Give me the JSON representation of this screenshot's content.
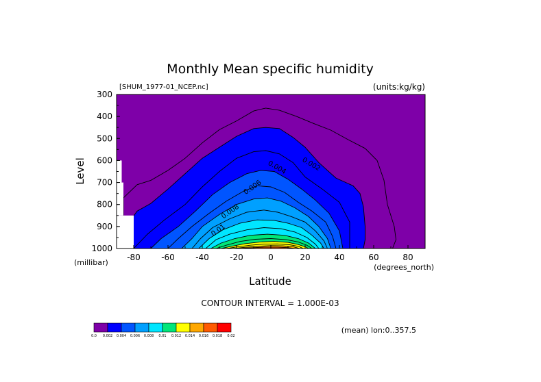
{
  "chart_data": {
    "type": "filled-contour",
    "title": "Monthly Mean specific humidity",
    "file_label": "[SHUM_1977-01_NCEP.nc]",
    "units_label": "(units:kg/kg)",
    "xlabel": "Latitude",
    "xunits": "(degrees_north)",
    "ylabel": "Level",
    "yunits": "(millibar)",
    "xlim": [
      -90,
      90
    ],
    "ylim": [
      300,
      1000
    ],
    "y_inverted": true,
    "x_ticks": [
      "-80",
      "-60",
      "-40",
      "-20",
      "0",
      "20",
      "40",
      "60",
      "80"
    ],
    "x_tick_values": [
      -80,
      -60,
      -40,
      -20,
      0,
      20,
      40,
      60,
      80
    ],
    "y_ticks": [
      "300",
      "400",
      "500",
      "600",
      "700",
      "800",
      "900",
      "1000"
    ],
    "y_tick_values": [
      300,
      400,
      500,
      600,
      700,
      800,
      900,
      1000
    ],
    "contour_interval_text": "CONTOUR INTERVAL = 1.000E-03",
    "region_text": "(mean) lon:0..357.5",
    "contour_labels": [
      {
        "text": "0.002",
        "lat": 23,
        "lev": 625
      },
      {
        "text": "0.004",
        "lat": 3,
        "lev": 640
      },
      {
        "text": "0.006",
        "lat": -10,
        "lev": 730
      },
      {
        "text": "0.008",
        "lat": -23,
        "lev": 840
      },
      {
        "text": "0.01",
        "lat": -30,
        "lev": 925
      }
    ],
    "colorbar": {
      "levels": [
        "0.0",
        "0.002",
        "0.004",
        "0.006",
        "0.008",
        "0.01",
        "0.012",
        "0.014",
        "0.016",
        "0.018",
        "0.02"
      ],
      "colors": [
        "#7e00a8",
        "#0000ff",
        "#0055ff",
        "#00a0ff",
        "#00e6ff",
        "#00e67a",
        "#ffff00",
        "#ffa800",
        "#ff5a00",
        "#ff0000"
      ]
    },
    "contours": [
      {
        "level": 0.001,
        "points": [
          [
            -86,
            1000
          ],
          [
            -86,
            770
          ],
          [
            -78,
            710
          ],
          [
            -70,
            690
          ],
          [
            -60,
            645
          ],
          [
            -50,
            590
          ],
          [
            -40,
            520
          ],
          [
            -30,
            460
          ],
          [
            -20,
            420
          ],
          [
            -10,
            375
          ],
          [
            -3,
            362
          ],
          [
            5,
            372
          ],
          [
            15,
            400
          ],
          [
            25,
            432
          ],
          [
            35,
            462
          ],
          [
            45,
            505
          ],
          [
            55,
            545
          ],
          [
            62,
            600
          ],
          [
            66,
            690
          ],
          [
            68,
            800
          ],
          [
            72,
            900
          ],
          [
            73,
            960
          ],
          [
            71,
            1000
          ]
        ]
      },
      {
        "level": 0.002,
        "points": [
          [
            -84,
            1000
          ],
          [
            -84,
            895
          ],
          [
            -78,
            830
          ],
          [
            -70,
            795
          ],
          [
            -60,
            730
          ],
          [
            -50,
            660
          ],
          [
            -40,
            590
          ],
          [
            -30,
            540
          ],
          [
            -20,
            490
          ],
          [
            -10,
            455
          ],
          [
            -3,
            450
          ],
          [
            5,
            455
          ],
          [
            13,
            495
          ],
          [
            20,
            540
          ],
          [
            28,
            610
          ],
          [
            38,
            680
          ],
          [
            48,
            715
          ],
          [
            52,
            750
          ],
          [
            54,
            810
          ],
          [
            55,
            900
          ],
          [
            55,
            960
          ],
          [
            54,
            1000
          ]
        ]
      },
      {
        "level": 0.003,
        "points": [
          [
            -80,
            1000
          ],
          [
            -72,
            935
          ],
          [
            -62,
            870
          ],
          [
            -50,
            800
          ],
          [
            -40,
            720
          ],
          [
            -30,
            650
          ],
          [
            -20,
            590
          ],
          [
            -10,
            560
          ],
          [
            -3,
            555
          ],
          [
            5,
            570
          ],
          [
            13,
            610
          ],
          [
            20,
            675
          ],
          [
            30,
            730
          ],
          [
            40,
            790
          ],
          [
            46,
            880
          ],
          [
            46,
            960
          ],
          [
            46,
            1000
          ]
        ]
      },
      {
        "level": 0.004,
        "points": [
          [
            -70,
            1000
          ],
          [
            -64,
            955
          ],
          [
            -54,
            900
          ],
          [
            -44,
            830
          ],
          [
            -34,
            755
          ],
          [
            -24,
            700
          ],
          [
            -14,
            660
          ],
          [
            -6,
            645
          ],
          [
            2,
            650
          ],
          [
            10,
            685
          ],
          [
            18,
            730
          ],
          [
            26,
            780
          ],
          [
            34,
            840
          ],
          [
            40,
            920
          ],
          [
            42,
            1000
          ]
        ]
      },
      {
        "level": 0.005,
        "points": [
          [
            -60,
            1000
          ],
          [
            -54,
            955
          ],
          [
            -46,
            900
          ],
          [
            -36,
            840
          ],
          [
            -26,
            785
          ],
          [
            -16,
            740
          ],
          [
            -8,
            715
          ],
          [
            0,
            720
          ],
          [
            8,
            745
          ],
          [
            16,
            790
          ],
          [
            24,
            830
          ],
          [
            32,
            880
          ],
          [
            36,
            945
          ],
          [
            38,
            1000
          ]
        ]
      },
      {
        "level": 0.006,
        "points": [
          [
            -52,
            1000
          ],
          [
            -46,
            955
          ],
          [
            -40,
            900
          ],
          [
            -30,
            845
          ],
          [
            -20,
            800
          ],
          [
            -10,
            775
          ],
          [
            -2,
            770
          ],
          [
            6,
            785
          ],
          [
            14,
            815
          ],
          [
            22,
            855
          ],
          [
            28,
            900
          ],
          [
            33,
            955
          ],
          [
            35,
            1000
          ]
        ]
      },
      {
        "level": 0.007,
        "points": [
          [
            -46,
            1000
          ],
          [
            -41,
            955
          ],
          [
            -34,
            905
          ],
          [
            -24,
            865
          ],
          [
            -14,
            835
          ],
          [
            -4,
            825
          ],
          [
            4,
            835
          ],
          [
            12,
            855
          ],
          [
            20,
            880
          ],
          [
            26,
            920
          ],
          [
            31,
            965
          ],
          [
            33,
            1000
          ]
        ]
      },
      {
        "level": 0.008,
        "points": [
          [
            -42,
            1000
          ],
          [
            -36,
            955
          ],
          [
            -28,
            915
          ],
          [
            -18,
            885
          ],
          [
            -8,
            870
          ],
          [
            2,
            872
          ],
          [
            10,
            885
          ],
          [
            18,
            905
          ],
          [
            24,
            940
          ],
          [
            29,
            975
          ],
          [
            31,
            1000
          ]
        ]
      },
      {
        "level": 0.009,
        "points": [
          [
            -38,
            1000
          ],
          [
            -32,
            960
          ],
          [
            -24,
            935
          ],
          [
            -14,
            915
          ],
          [
            -4,
            905
          ],
          [
            6,
            910
          ],
          [
            14,
            925
          ],
          [
            21,
            950
          ],
          [
            26,
            980
          ],
          [
            28,
            1000
          ]
        ]
      },
      {
        "level": 0.01,
        "points": [
          [
            -35,
            1000
          ],
          [
            -29,
            975
          ],
          [
            -21,
            955
          ],
          [
            -12,
            940
          ],
          [
            -2,
            935
          ],
          [
            8,
            940
          ],
          [
            16,
            955
          ],
          [
            22,
            975
          ],
          [
            26,
            1000
          ]
        ]
      },
      {
        "level": 0.011,
        "points": [
          [
            -32,
            1000
          ],
          [
            -26,
            985
          ],
          [
            -18,
            968
          ],
          [
            -9,
            958
          ],
          [
            0,
            955
          ],
          [
            9,
            960
          ],
          [
            16,
            970
          ],
          [
            21,
            985
          ],
          [
            24,
            1000
          ]
        ]
      },
      {
        "level": 0.012,
        "points": [
          [
            -29,
            1000
          ],
          [
            -23,
            990
          ],
          [
            -15,
            978
          ],
          [
            -6,
            970
          ],
          [
            2,
            968
          ],
          [
            10,
            972
          ],
          [
            16,
            982
          ],
          [
            20,
            992
          ],
          [
            22,
            1000
          ]
        ]
      },
      {
        "level": 0.013,
        "points": [
          [
            -26,
            1000
          ],
          [
            -20,
            993
          ],
          [
            -12,
            985
          ],
          [
            -4,
            980
          ],
          [
            4,
            979
          ],
          [
            11,
            983
          ],
          [
            16,
            990
          ],
          [
            19,
            1000
          ]
        ]
      },
      {
        "level": 0.014,
        "points": [
          [
            -22,
            1000
          ],
          [
            -16,
            995
          ],
          [
            -8,
            990
          ],
          [
            0,
            987
          ],
          [
            7,
            988
          ],
          [
            13,
            992
          ],
          [
            17,
            1000
          ]
        ]
      },
      {
        "level": 0.015,
        "points": [
          [
            -18,
            1000
          ],
          [
            -12,
            997
          ],
          [
            -4,
            994
          ],
          [
            4,
            994
          ],
          [
            10,
            996
          ],
          [
            14,
            1000
          ]
        ]
      }
    ],
    "fill_levels": [
      {
        "color": "#0000ff",
        "contour": 1
      },
      {
        "color": "#0055ff",
        "contour": 3
      },
      {
        "color": "#00a0ff",
        "contour": 5
      },
      {
        "color": "#00e6ff",
        "contour": 7
      },
      {
        "color": "#00e67a",
        "contour": 9
      },
      {
        "color": "#ffff00",
        "contour": 11
      },
      {
        "color": "#ffa800",
        "contour": 13
      },
      {
        "color": "#ff5a00",
        "contour": 14
      }
    ],
    "background_color": "#7e00a8",
    "missing_regions": [
      {
        "lat": [
          -90,
          -87
        ],
        "lev": [
          600,
          700
        ]
      },
      {
        "lat": [
          -90,
          -86
        ],
        "lev": [
          700,
          850
        ]
      },
      {
        "lat": [
          -90,
          -80
        ],
        "lev": [
          850,
          1000
        ]
      }
    ]
  }
}
